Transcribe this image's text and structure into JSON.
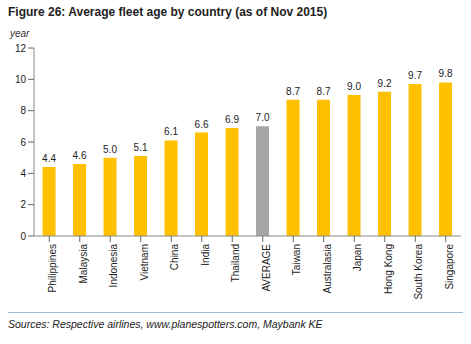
{
  "chart_data": {
    "type": "bar",
    "title": "Figure 26: Average fleet age by country (as of Nov 2015)",
    "y_label": "year",
    "source": "Sources: Respective airlines, www.planespotters.com, Maybank KE",
    "categories": [
      "Philippines",
      "Malaysia",
      "Indonesia",
      "Vietnam",
      "China",
      "India",
      "Thailand",
      "AVERAGE",
      "Taiwan",
      "Australasia",
      "Japan",
      "Hong Kong",
      "South Korea",
      "Singapore"
    ],
    "values": [
      4.4,
      4.6,
      5.0,
      5.1,
      6.1,
      6.6,
      6.9,
      7.0,
      8.7,
      8.7,
      9.0,
      9.2,
      9.7,
      9.8
    ],
    "value_labels": [
      "4.4",
      "4.6",
      "5.0",
      "5.1",
      "6.1",
      "6.6",
      "6.9",
      "7.0",
      "8.7",
      "8.7",
      "9.0",
      "9.2",
      "9.7",
      "9.8"
    ],
    "colors": [
      "#FFC000",
      "#FFC000",
      "#FFC000",
      "#FFC000",
      "#FFC000",
      "#FFC000",
      "#FFC000",
      "#A6A6A6",
      "#FFC000",
      "#FFC000",
      "#FFC000",
      "#FFC000",
      "#FFC000",
      "#FFC000"
    ],
    "ylim": [
      0,
      12
    ],
    "yticks": [
      0,
      2,
      4,
      6,
      8,
      10,
      12
    ],
    "grid": false,
    "data_labels": true
  }
}
